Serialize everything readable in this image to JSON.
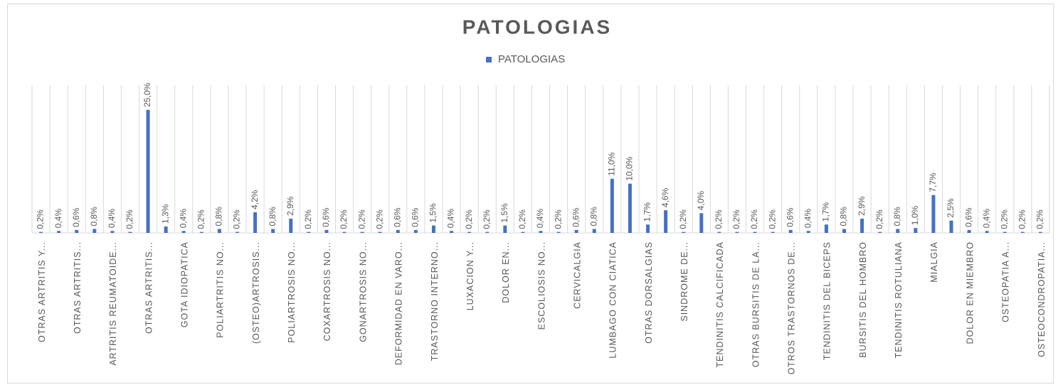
{
  "chart_data": {
    "type": "bar",
    "title": "PATOLOGIAS",
    "categories": [
      "OTRAS ARTRITIS Y...",
      null,
      "OTRAS ARTRITIS...",
      null,
      "ARTRITIS REUMATOIDE...",
      null,
      "OTRAS ARTRITIS...",
      null,
      "GOTA IDIOPATICA",
      null,
      "POLIARTRITIS NO...",
      null,
      "(OSTEO)ARTROSIS...",
      null,
      "POLIARTROSIS NO...",
      null,
      "COXARTROSIS NO...",
      null,
      "GONARTROSIS NO...",
      null,
      "DEFORMIDAD EN VARO...",
      null,
      "TRASTORNO INTERNO...",
      null,
      "LUXACION Y...",
      null,
      "DOLOR EN...",
      null,
      "ESCOLIOSIS NO...",
      null,
      "CERVICALGIA",
      null,
      "LUMBAGO CON CIATICA",
      null,
      "OTRAS DORSALGIAS",
      null,
      "SINDROME DE...",
      null,
      "TENDINITIS CALCIFICADA",
      null,
      "OTRAS BURSITIS DE LA...",
      null,
      "OTROS TRASTORNOS DE...",
      null,
      "TENDINITIS DEL BICEPS",
      null,
      "BURSITIS DEL HOMBRO",
      null,
      "TENDINITIS ROTULIANA",
      null,
      "MIALGIA",
      null,
      "DOLOR EN MIEMBRO",
      null,
      "OSTEOPATIA A...",
      null,
      "OSTEOCONDROPATIA..."
    ],
    "series": [
      {
        "name": "PATOLOGIAS",
        "color": "#4472c4",
        "values": [
          0.2,
          0.4,
          0.6,
          0.8,
          0.4,
          0.2,
          25.0,
          1.3,
          0.4,
          0.2,
          0.8,
          0.2,
          4.2,
          0.8,
          2.9,
          0.2,
          0.6,
          0.2,
          0.2,
          0.2,
          0.6,
          0.6,
          1.5,
          0.4,
          0.2,
          0.2,
          1.5,
          0.2,
          0.4,
          0.2,
          0.6,
          0.8,
          11.0,
          10.0,
          1.7,
          4.6,
          0.2,
          4.0,
          0.2,
          0.2,
          0.2,
          0.2,
          0.6,
          0.4,
          1.7,
          0.8,
          2.9,
          0.2,
          0.8,
          1.0,
          7.7,
          2.5,
          0.6,
          0.4,
          0.2,
          0.2,
          0.2
        ],
        "value_labels": [
          "0,2%",
          "0,4%",
          "0,6%",
          "0,8%",
          "0,4%",
          "0,2%",
          "25,0%",
          "1,3%",
          "0,4%",
          "0,2%",
          "0,8%",
          "0,2%",
          "4,2%",
          "0,8%",
          "2,9%",
          "0,2%",
          "0,6%",
          "0,2%",
          "0,2%",
          "0,2%",
          "0,6%",
          "0,6%",
          "1,5%",
          "0,4%",
          "0,2%",
          "0,2%",
          "1,5%",
          "0,2%",
          "0,4%",
          "0,2%",
          "0,6%",
          "0,8%",
          "11,0%",
          "10,0%",
          "1,7%",
          "4,6%",
          "0,2%",
          "4,0%",
          "0,2%",
          "0,2%",
          "0,2%",
          "0,2%",
          "0,6%",
          "0,4%",
          "1,7%",
          "0,8%",
          "2,9%",
          "0,2%",
          "0,8%",
          "1,0%",
          "7,7%",
          "2,5%",
          "0,6%",
          "0,4%",
          "0,2%",
          "0,2%",
          "0,2%"
        ]
      }
    ],
    "ylim": [
      0,
      30
    ],
    "grid": true,
    "legend": "top"
  }
}
